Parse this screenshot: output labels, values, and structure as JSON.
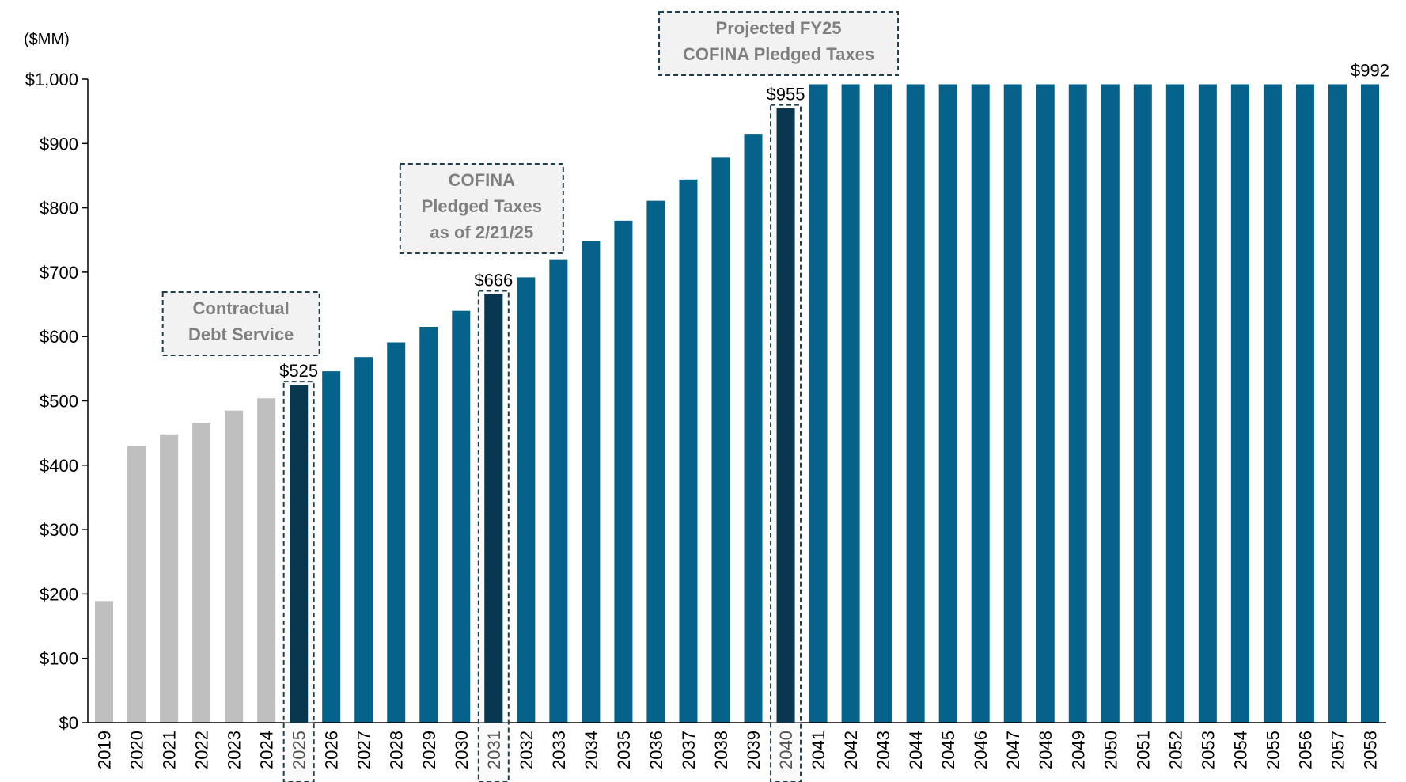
{
  "chart_data": {
    "type": "bar",
    "unit_label": "($MM)",
    "ylim": [
      0,
      1000
    ],
    "yticks": [
      0,
      100,
      200,
      300,
      400,
      500,
      600,
      700,
      800,
      900,
      1000
    ],
    "ytick_labels": [
      "$0",
      "$100",
      "$200",
      "$300",
      "$400",
      "$500",
      "$600",
      "$700",
      "$800",
      "$900",
      "$1,000"
    ],
    "grid": false,
    "categories": [
      "2019",
      "2020",
      "2021",
      "2022",
      "2023",
      "2024",
      "2025",
      "2026",
      "2027",
      "2028",
      "2029",
      "2030",
      "2031",
      "2032",
      "2033",
      "2034",
      "2035",
      "2036",
      "2037",
      "2038",
      "2039",
      "2040",
      "2041",
      "2042",
      "2043",
      "2044",
      "2045",
      "2046",
      "2047",
      "2048",
      "2049",
      "2050",
      "2051",
      "2052",
      "2053",
      "2054",
      "2055",
      "2056",
      "2057",
      "2058"
    ],
    "values": [
      189,
      430,
      448,
      466,
      485,
      504,
      525,
      546,
      568,
      591,
      615,
      640,
      666,
      692,
      720,
      749,
      780,
      811,
      844,
      879,
      915,
      955,
      992,
      992,
      992,
      992,
      992,
      992,
      992,
      992,
      992,
      992,
      992,
      992,
      992,
      992,
      992,
      992,
      992,
      992
    ],
    "colors": {
      "historical": "#bfbfbf",
      "projected": "#05628a",
      "highlight": "#09374f",
      "callout_border": "#1f3f4f",
      "callout_fill": "#f2f2f2",
      "callout_text": "#7f7f7f"
    },
    "historical_count": 6,
    "highlights": [
      {
        "year": "2025",
        "label": "$525"
      },
      {
        "year": "2031",
        "label": "$666"
      },
      {
        "year": "2040",
        "label": "$955"
      }
    ],
    "end_label": {
      "year": "2058",
      "label": "$992"
    },
    "callouts": [
      {
        "year": "2025",
        "lines": [
          "Contractual",
          "Debt Service"
        ]
      },
      {
        "year": "2031",
        "lines": [
          "COFINA",
          "Pledged Taxes",
          "as of 2/21/25"
        ]
      },
      {
        "year": "2040",
        "lines": [
          "Projected FY25",
          "COFINA Pledged Taxes"
        ]
      }
    ]
  }
}
